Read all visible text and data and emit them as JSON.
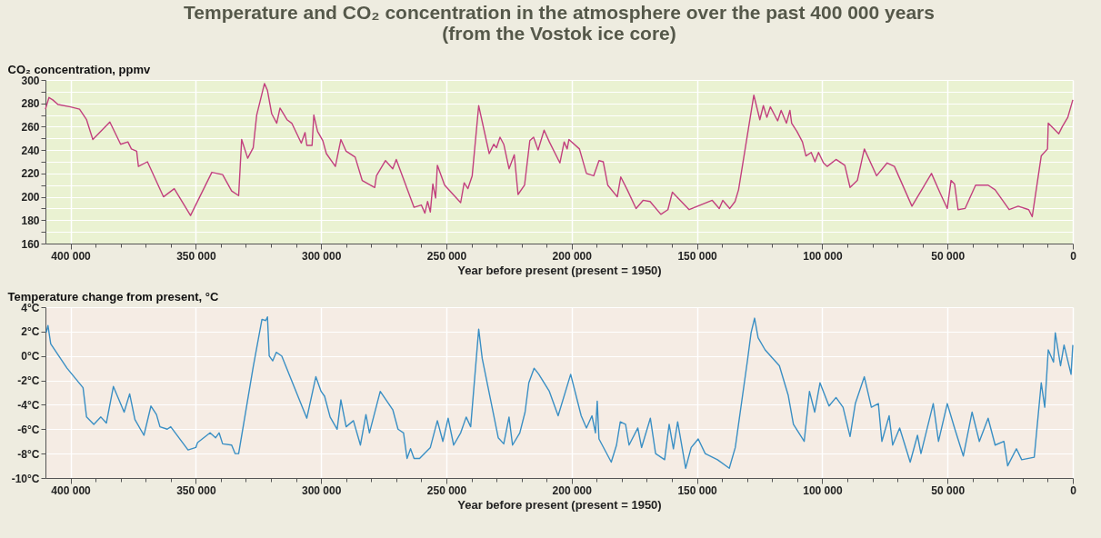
{
  "chart_data": [
    {
      "type": "line",
      "title": "Temperature and CO₂ concentration in the atmosphere over the past 400 000 years",
      "subtitle": "(from the Vostok ice core)",
      "ylabel": "CO₂ concentration, ppmv",
      "xlabel": "Year before present (present = 1950)",
      "grid": true,
      "xlim": [
        410000,
        0
      ],
      "ylim": [
        160,
        300
      ],
      "xticks": [
        {
          "value": 400000,
          "label": "400 000"
        },
        {
          "value": 350000,
          "label": "350 000"
        },
        {
          "value": 300000,
          "label": "300 000"
        },
        {
          "value": 250000,
          "label": "250 000"
        },
        {
          "value": 200000,
          "label": "200 000"
        },
        {
          "value": 150000,
          "label": "150 000"
        },
        {
          "value": 100000,
          "label": "100 000"
        },
        {
          "value": 50000,
          "label": "50 000"
        },
        0,
        {
          "value": 390000,
          "label": null
        },
        {
          "value": 380000,
          "label": null
        },
        {
          "value": 370000,
          "label": null
        },
        {
          "value": 360000,
          "label": null
        },
        {
          "value": 340000,
          "label": null
        },
        {
          "value": 330000,
          "label": null
        },
        {
          "value": 320000,
          "label": null
        },
        {
          "value": 310000,
          "label": null
        },
        {
          "value": 290000,
          "label": null
        },
        {
          "value": 280000,
          "label": null
        },
        {
          "value": 270000,
          "label": null
        },
        {
          "value": 260000,
          "label": null
        },
        {
          "value": 240000,
          "label": null
        },
        {
          "value": 230000,
          "label": null
        },
        {
          "value": 220000,
          "label": null
        },
        {
          "value": 210000,
          "label": null
        },
        {
          "value": 190000,
          "label": null
        },
        {
          "value": 180000,
          "label": null
        },
        {
          "value": 170000,
          "label": null
        },
        {
          "value": 160000,
          "label": null
        },
        {
          "value": 140000,
          "label": null
        },
        {
          "value": 130000,
          "label": null
        },
        {
          "value": 120000,
          "label": null
        },
        {
          "value": 110000,
          "label": null
        },
        {
          "value": 90000,
          "label": null
        },
        {
          "value": 80000,
          "label": null
        },
        {
          "value": 70000,
          "label": null
        },
        {
          "value": 60000,
          "label": null
        },
        {
          "value": 40000,
          "label": null
        },
        {
          "value": 30000,
          "label": null
        },
        {
          "value": 20000,
          "label": null
        },
        {
          "value": 10000,
          "label": null
        }
      ],
      "yticks": [
        160,
        180,
        200,
        220,
        240,
        260,
        280,
        300,
        {
          "value": 170,
          "label": null
        },
        {
          "value": 190,
          "label": null
        },
        {
          "value": 210,
          "label": null
        },
        {
          "value": 230,
          "label": null
        },
        {
          "value": 250,
          "label": null
        },
        {
          "value": 270,
          "label": null
        },
        {
          "value": 290,
          "label": null
        }
      ],
      "series": [
        {
          "color": "#c2407e",
          "x": [
            410000,
            408600,
            407100,
            405000,
            400000,
            396400,
            393600,
            391100,
            384300,
            380000,
            377100,
            375700,
            373600,
            372900,
            369300,
            362900,
            358600,
            352100,
            343600,
            339300,
            335700,
            332900,
            331700,
            329300,
            327100,
            325700,
            322600,
            321400,
            319700,
            317700,
            316400,
            313600,
            311700,
            307900,
            306400,
            305700,
            303600,
            302900,
            301400,
            299300,
            297900,
            294300,
            292100,
            290000,
            286400,
            283600,
            278600,
            277900,
            274300,
            271400,
            270000,
            262900,
            260000,
            258600,
            257500,
            256400,
            255400,
            254300,
            253600,
            250700,
            244300,
            242900,
            241400,
            239700,
            237100,
            232900,
            231100,
            230000,
            228600,
            227100,
            225000,
            222900,
            221400,
            218800,
            216700,
            215200,
            213400,
            211000,
            208900,
            204700,
            203000,
            201800,
            201100,
            196900,
            194100,
            191200,
            189100,
            187400,
            185600,
            181800,
            180400,
            177800,
            174300,
            171500,
            168700,
            164400,
            161600,
            159800,
            153100,
            143900,
            141100,
            139700,
            136900,
            134800,
            133400,
            127300,
            124900,
            123500,
            122100,
            120700,
            117800,
            116400,
            114300,
            112900,
            112200,
            110100,
            107900,
            106500,
            104400,
            102900,
            101500,
            99500,
            98000,
            94500,
            91000,
            88900,
            86000,
            83200,
            78300,
            74100,
            71200,
            64200,
            56400,
            52900,
            50100,
            48600,
            47200,
            45800,
            43000,
            38800,
            33800,
            31000,
            25400,
            21800,
            17600,
            16200,
            12600,
            10100,
            9800,
            5600,
            4200,
            2000,
            0
          ],
          "values": [
            275,
            285,
            283,
            279,
            277,
            275,
            266,
            249,
            264,
            245,
            247,
            241,
            239,
            226,
            230,
            200,
            207,
            184,
            221,
            219,
            205,
            201,
            249,
            233,
            242,
            270,
            297,
            291,
            271,
            263,
            276,
            266,
            263,
            246,
            255,
            244,
            244,
            270,
            256,
            248,
            237,
            226,
            249,
            239,
            234,
            214,
            208,
            218,
            231,
            224,
            232,
            191,
            193,
            186,
            196,
            187,
            211,
            199,
            227,
            210,
            195,
            212,
            207,
            218,
            278,
            237,
            245,
            242,
            251,
            245,
            224,
            236,
            202,
            210,
            248,
            251,
            240,
            257,
            247,
            229,
            247,
            241,
            249,
            241,
            220,
            218,
            231,
            230,
            210,
            200,
            217,
            206,
            190,
            197,
            196,
            185,
            189,
            204,
            189,
            197,
            190,
            197,
            190,
            196,
            206,
            287,
            266,
            278,
            268,
            277,
            265,
            274,
            263,
            274,
            263,
            256,
            247,
            235,
            238,
            230,
            238,
            229,
            226,
            232,
            227,
            208,
            214,
            241,
            218,
            229,
            226,
            192,
            220,
            203,
            190,
            214,
            211,
            189,
            190,
            210,
            210,
            206,
            189,
            192,
            189,
            183,
            235,
            241,
            263,
            254,
            260,
            268,
            283
          ]
        }
      ]
    },
    {
      "type": "line",
      "ylabel": "Temperature change from present, °C",
      "xlabel": "Year before present (present = 1950)",
      "grid": true,
      "xlim": [
        410000,
        0
      ],
      "ylim": [
        -10,
        4
      ],
      "xticks": [
        {
          "value": 400000,
          "label": "400 000"
        },
        {
          "value": 350000,
          "label": "350 000"
        },
        {
          "value": 300000,
          "label": "300 000"
        },
        {
          "value": 250000,
          "label": "250 000"
        },
        {
          "value": 200000,
          "label": "200 000"
        },
        {
          "value": 150000,
          "label": "150 000"
        },
        {
          "value": 100000,
          "label": "100 000"
        },
        {
          "value": 50000,
          "label": "50 000"
        },
        0,
        {
          "value": 390000,
          "label": null
        },
        {
          "value": 380000,
          "label": null
        },
        {
          "value": 370000,
          "label": null
        },
        {
          "value": 360000,
          "label": null
        },
        {
          "value": 340000,
          "label": null
        },
        {
          "value": 330000,
          "label": null
        },
        {
          "value": 320000,
          "label": null
        },
        {
          "value": 310000,
          "label": null
        },
        {
          "value": 290000,
          "label": null
        },
        {
          "value": 280000,
          "label": null
        },
        {
          "value": 270000,
          "label": null
        },
        {
          "value": 260000,
          "label": null
        },
        {
          "value": 240000,
          "label": null
        },
        {
          "value": 230000,
          "label": null
        },
        {
          "value": 220000,
          "label": null
        },
        {
          "value": 210000,
          "label": null
        },
        {
          "value": 190000,
          "label": null
        },
        {
          "value": 180000,
          "label": null
        },
        {
          "value": 170000,
          "label": null
        },
        {
          "value": 160000,
          "label": null
        },
        {
          "value": 140000,
          "label": null
        },
        {
          "value": 130000,
          "label": null
        },
        {
          "value": 120000,
          "label": null
        },
        {
          "value": 110000,
          "label": null
        },
        {
          "value": 90000,
          "label": null
        },
        {
          "value": 80000,
          "label": null
        },
        {
          "value": 70000,
          "label": null
        },
        {
          "value": 60000,
          "label": null
        },
        {
          "value": 40000,
          "label": null
        },
        {
          "value": 30000,
          "label": null
        },
        {
          "value": 20000,
          "label": null
        },
        {
          "value": 10000,
          "label": null
        }
      ],
      "yticks": [
        {
          "value": 4,
          "label": "4°C"
        },
        {
          "value": 2,
          "label": "2°C"
        },
        {
          "value": 0,
          "label": "0°C"
        },
        {
          "value": -2,
          "label": "-2°C"
        },
        {
          "value": -4,
          "label": "-4°C"
        },
        {
          "value": -6,
          "label": "-6°C"
        },
        {
          "value": -8,
          "label": "-8°C"
        },
        {
          "value": -10,
          "label": "-10°C"
        }
      ],
      "series": [
        {
          "color": "#3a8fc4",
          "x": [
            409700,
            409000,
            407900,
            401400,
            395000,
            393600,
            390700,
            387900,
            385700,
            382900,
            378600,
            376400,
            374300,
            370700,
            367900,
            365700,
            364300,
            361400,
            360000,
            353100,
            350000,
            349300,
            344300,
            342100,
            340700,
            339300,
            335700,
            334300,
            332900,
            327100,
            323600,
            322100,
            321400,
            320700,
            319300,
            317900,
            315700,
            305700,
            302100,
            300000,
            298600,
            296400,
            293600,
            292100,
            290000,
            287100,
            284300,
            282100,
            280700,
            276400,
            271400,
            269300,
            267100,
            265700,
            264300,
            262900,
            260700,
            256400,
            253600,
            251400,
            249300,
            247100,
            244300,
            242100,
            240300,
            237100,
            235700,
            229300,
            227100,
            225000,
            223600,
            220700,
            218600,
            217100,
            215000,
            213100,
            208900,
            205400,
            200400,
            196200,
            194100,
            191900,
            190500,
            189800,
            189100,
            184200,
            182100,
            180600,
            178500,
            177100,
            173600,
            172100,
            168600,
            166500,
            162900,
            161100,
            159400,
            157700,
            154500,
            152300,
            149500,
            146700,
            141800,
            137100,
            134700,
            129800,
            128400,
            127000,
            125600,
            122800,
            117100,
            113600,
            111500,
            107200,
            105100,
            103000,
            100900,
            97300,
            94500,
            91700,
            88900,
            86800,
            83200,
            80400,
            77600,
            76200,
            73300,
            71900,
            69100,
            64900,
            62000,
            60600,
            55700,
            53600,
            50100,
            47200,
            43700,
            40200,
            37300,
            33800,
            31000,
            27500,
            26000,
            22500,
            20400,
            15400,
            12600,
            11200,
            9800,
            7700,
            7000,
            4900,
            3500,
            700,
            0
          ],
          "values": [
            1.9,
            2.5,
            1.0,
            -1.0,
            -2.6,
            -5.0,
            -5.6,
            -5.0,
            -5.5,
            -2.5,
            -4.6,
            -3.1,
            -5.2,
            -6.5,
            -4.1,
            -4.8,
            -5.8,
            -6.0,
            -5.8,
            -7.7,
            -7.5,
            -7.1,
            -6.3,
            -6.7,
            -6.3,
            -7.2,
            -7.3,
            -8.0,
            -8.0,
            -0.9,
            3.0,
            2.9,
            3.2,
            0.0,
            -0.4,
            0.3,
            0.0,
            -5.1,
            -1.7,
            -2.9,
            -3.3,
            -5.0,
            -6.0,
            -3.6,
            -5.8,
            -5.3,
            -7.3,
            -4.8,
            -6.3,
            -2.9,
            -4.4,
            -6.0,
            -6.3,
            -8.4,
            -7.6,
            -8.4,
            -8.4,
            -7.5,
            -5.3,
            -7.0,
            -5.1,
            -7.3,
            -6.3,
            -5.0,
            -5.8,
            2.2,
            -0.2,
            -6.7,
            -7.2,
            -5.0,
            -7.3,
            -6.3,
            -4.6,
            -2.2,
            -1.0,
            -1.5,
            -2.9,
            -4.9,
            -1.5,
            -4.9,
            -5.9,
            -4.9,
            -6.3,
            -3.7,
            -6.8,
            -8.7,
            -7.3,
            -5.4,
            -5.6,
            -7.3,
            -5.9,
            -7.5,
            -5.1,
            -8.0,
            -8.5,
            -5.6,
            -7.6,
            -5.4,
            -9.2,
            -7.5,
            -6.8,
            -8.0,
            -8.5,
            -9.2,
            -7.5,
            -0.3,
            1.9,
            3.1,
            1.5,
            0.5,
            -0.8,
            -3.2,
            -5.6,
            -7.0,
            -2.9,
            -4.6,
            -2.2,
            -4.1,
            -3.4,
            -4.2,
            -6.6,
            -3.9,
            -1.7,
            -4.2,
            -3.9,
            -7.0,
            -4.9,
            -7.3,
            -5.9,
            -8.7,
            -6.5,
            -8.0,
            -3.9,
            -7.0,
            -3.9,
            -5.9,
            -8.2,
            -4.6,
            -7.0,
            -5.1,
            -7.3,
            -7.0,
            -9.0,
            -7.6,
            -8.5,
            -8.3,
            -2.2,
            -4.2,
            0.5,
            -0.5,
            1.9,
            -0.8,
            0.9,
            -1.5,
            0.9
          ]
        }
      ]
    }
  ]
}
